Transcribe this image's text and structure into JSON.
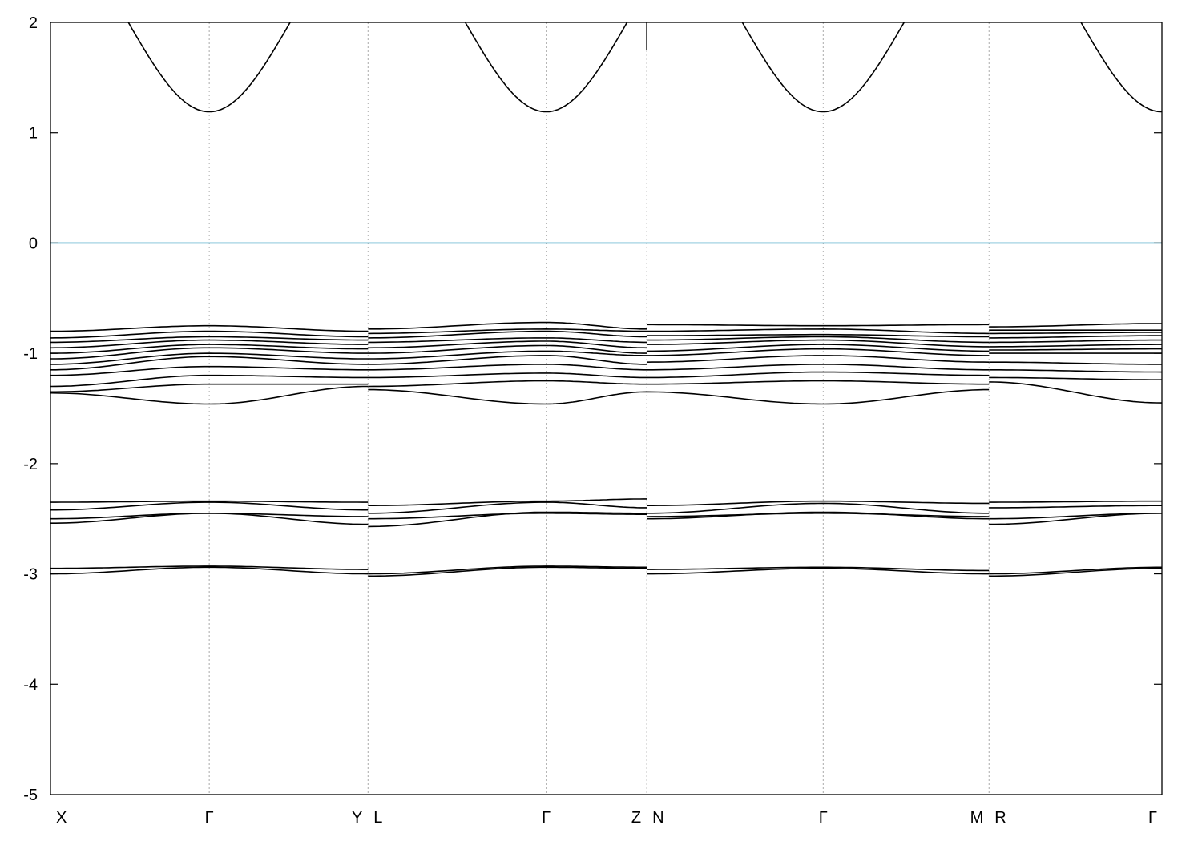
{
  "chart_data": {
    "type": "line",
    "title": "",
    "xlabel": "",
    "ylabel": "",
    "ylim": [
      -5,
      2
    ],
    "xlim": [
      0,
      6.3
    ],
    "yticks": [
      -5,
      -4,
      -3,
      -2,
      -1,
      0,
      1,
      2
    ],
    "ytick_labels": [
      "-5",
      "-4",
      "-3",
      "-2",
      "-1",
      "0",
      "1",
      "2"
    ],
    "grid": "vertical dotted lines at high-symmetry points",
    "legend": "none",
    "fermi_level": {
      "y": 0,
      "color": "#46a6c6"
    },
    "band_color": "#000000",
    "segments": [
      {
        "start": 0.0,
        "end": 1.8,
        "start_label": "X",
        "mid": 0.9,
        "mid_label": "Γ",
        "end_label": "Y"
      },
      {
        "start": 1.8,
        "end": 3.38,
        "start_label": "L",
        "mid": 2.81,
        "mid_label": "Γ",
        "end_label": "Z"
      },
      {
        "start": 3.38,
        "end": 5.32,
        "start_label": "N",
        "mid": 4.38,
        "mid_label": "Γ",
        "end_label": "M"
      },
      {
        "start": 5.32,
        "end": 6.3,
        "start_label": "R",
        "mid": 6.3,
        "mid_label": "Γ",
        "end_label": ""
      }
    ],
    "bands": [
      {
        "edge": [
          0.8,
          0.8,
          0.78,
          0.78,
          0.74,
          0.74,
          0.76
        ],
        "mid": [
          0.75,
          0.72,
          0.75,
          0.73
        ]
      },
      {
        "edge": [
          0.86,
          0.85,
          0.82,
          0.8,
          0.8,
          0.82,
          0.79
        ],
        "mid": [
          0.8,
          0.78,
          0.78,
          0.79
        ]
      },
      {
        "edge": [
          0.9,
          0.88,
          0.86,
          0.85,
          0.84,
          0.85,
          0.82
        ],
        "mid": [
          0.85,
          0.8,
          0.83,
          0.81
        ]
      },
      {
        "edge": [
          0.95,
          0.92,
          0.9,
          0.9,
          0.88,
          0.9,
          0.86
        ],
        "mid": [
          0.88,
          0.86,
          0.85,
          0.84
        ]
      },
      {
        "edge": [
          1.0,
          0.96,
          0.95,
          0.95,
          0.92,
          0.94,
          0.9
        ],
        "mid": [
          0.92,
          0.89,
          0.88,
          0.88
        ]
      },
      {
        "edge": [
          1.05,
          1.0,
          1.0,
          1.0,
          0.98,
          0.98,
          0.94
        ],
        "mid": [
          0.95,
          0.93,
          0.92,
          0.92
        ]
      },
      {
        "edge": [
          1.1,
          1.05,
          1.05,
          1.02,
          1.02,
          1.02,
          0.97
        ],
        "mid": [
          1.0,
          0.98,
          0.96,
          0.96
        ]
      },
      {
        "edge": [
          1.15,
          1.1,
          1.1,
          1.1,
          1.08,
          1.08,
          1.0
        ],
        "mid": [
          1.03,
          1.02,
          1.02,
          1.0
        ]
      },
      {
        "edge": [
          1.2,
          1.15,
          1.15,
          1.15,
          1.15,
          1.15,
          1.08
        ],
        "mid": [
          1.12,
          1.1,
          1.1,
          1.1
        ]
      },
      {
        "edge": [
          1.3,
          1.22,
          1.22,
          1.22,
          1.22,
          1.2,
          1.15
        ],
        "mid": [
          1.2,
          1.18,
          1.17,
          1.17
        ]
      },
      {
        "edge": [
          1.35,
          1.28,
          1.3,
          1.28,
          1.28,
          1.28,
          1.22
        ],
        "mid": [
          1.28,
          1.25,
          1.25,
          1.24
        ]
      },
      {
        "edge": [
          1.36,
          1.3,
          1.33,
          1.35,
          1.35,
          1.33,
          1.26
        ],
        "mid": [
          1.46,
          1.46,
          1.46,
          1.45
        ]
      },
      {
        "edge": [
          2.35,
          2.35,
          2.38,
          2.32,
          2.38,
          2.36,
          2.35
        ],
        "mid": [
          2.34,
          2.34,
          2.34,
          2.34
        ]
      },
      {
        "edge": [
          2.42,
          2.42,
          2.45,
          2.4,
          2.45,
          2.45,
          2.4
        ],
        "mid": [
          2.35,
          2.35,
          2.36,
          2.38
        ]
      },
      {
        "edge": [
          2.5,
          2.48,
          2.5,
          2.46,
          2.48,
          2.48,
          2.5
        ],
        "mid": [
          2.45,
          2.45,
          2.45,
          2.45
        ]
      },
      {
        "edge": [
          2.54,
          2.55,
          2.57,
          2.45,
          2.5,
          2.5,
          2.55
        ],
        "mid": [
          2.45,
          2.44,
          2.44,
          2.45
        ]
      },
      {
        "edge": [
          2.95,
          2.96,
          3.0,
          2.94,
          2.96,
          2.97,
          3.0
        ],
        "mid": [
          2.93,
          2.93,
          2.94,
          2.94
        ]
      },
      {
        "edge": [
          3.0,
          3.0,
          3.02,
          2.95,
          3.0,
          3.0,
          3.02
        ],
        "mid": [
          2.94,
          2.94,
          2.95,
          2.95
        ]
      }
    ],
    "conduction_band": {
      "min": 1.19,
      "max": 2.4,
      "z_point_values": [
        1.75,
        1.86
      ]
    }
  }
}
